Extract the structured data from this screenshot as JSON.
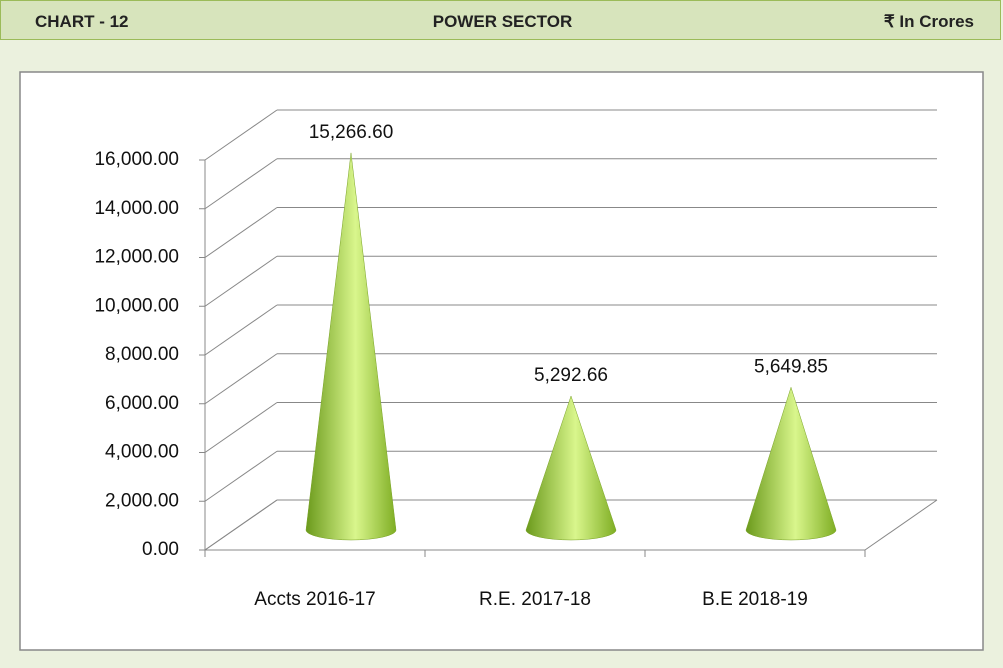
{
  "chart_data": {
    "type": "cone",
    "chart_label": "CHART - 12",
    "title": "POWER SECTOR",
    "unit": "₹ In Crores",
    "categories": [
      "Accts 2016-17",
      "R.E.  2017-18",
      "B.E  2018-19"
    ],
    "values": [
      15266.6,
      5292.66,
      5649.85
    ],
    "value_labels": [
      "15,266.60",
      "5,292.66",
      "5,649.85"
    ],
    "color": "#9acd32",
    "ylim": [
      0,
      16000
    ],
    "yticks": [
      {
        "value": 0,
        "label": "0.00"
      },
      {
        "value": 2000,
        "label": "2,000.00"
      },
      {
        "value": 4000,
        "label": "4,000.00"
      },
      {
        "value": 6000,
        "label": "6,000.00"
      },
      {
        "value": 8000,
        "label": "8,000.00"
      },
      {
        "value": 10000,
        "label": "10,000.00"
      },
      {
        "value": 12000,
        "label": "12,000.00"
      },
      {
        "value": 14000,
        "label": "14,000.00"
      },
      {
        "value": 16000,
        "label": "16,000.00"
      }
    ],
    "grid": true
  }
}
